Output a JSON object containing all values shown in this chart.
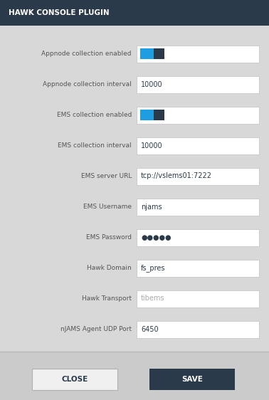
{
  "title": "HAWK CONSOLE PLUGIN",
  "title_bg": "#2b3a4a",
  "title_color": "#ffffff",
  "title_fontsize": 7.5,
  "dialog_bg": "#d8d8d8",
  "content_bg": "#d4d4d4",
  "footer_bg": "#cccccc",
  "field_bg": "#ffffff",
  "field_border": "#c0c0c0",
  "label_color": "#555555",
  "value_color": "#2b3a4a",
  "placeholder_color": "#aaaaaa",
  "toggle_blue": "#1e9de0",
  "toggle_dark": "#2b3a4a",
  "rows": [
    {
      "label": "Appnode collection enabled",
      "type": "toggle",
      "value": ""
    },
    {
      "label": "Appnode collection interval",
      "type": "text",
      "value": "10000"
    },
    {
      "label": "EMS collection enabled",
      "type": "toggle",
      "value": ""
    },
    {
      "label": "EMS collection interval",
      "type": "text",
      "value": "10000"
    },
    {
      "label": "EMS server URL",
      "type": "text",
      "value": "tcp://vslems01:7222"
    },
    {
      "label": "EMS Username",
      "type": "text",
      "value": "njams"
    },
    {
      "label": "EMS Password",
      "type": "password",
      "value": "●●●●●"
    },
    {
      "label": "Hawk Domain",
      "type": "text",
      "value": "fs_pres"
    },
    {
      "label": "Hawk Transport",
      "type": "placeholder",
      "value": "tibems"
    },
    {
      "label": "nJAMS Agent UDP Port",
      "type": "text",
      "value": "6450"
    }
  ],
  "close_label": "CLOSE",
  "save_label": "SAVE",
  "close_bg": "#f0f0f0",
  "save_bg": "#2b3a4a",
  "close_color": "#2b3a4a",
  "save_color": "#ffffff",
  "figwidth": 3.78,
  "figheight": 5.62,
  "dpi": 100
}
